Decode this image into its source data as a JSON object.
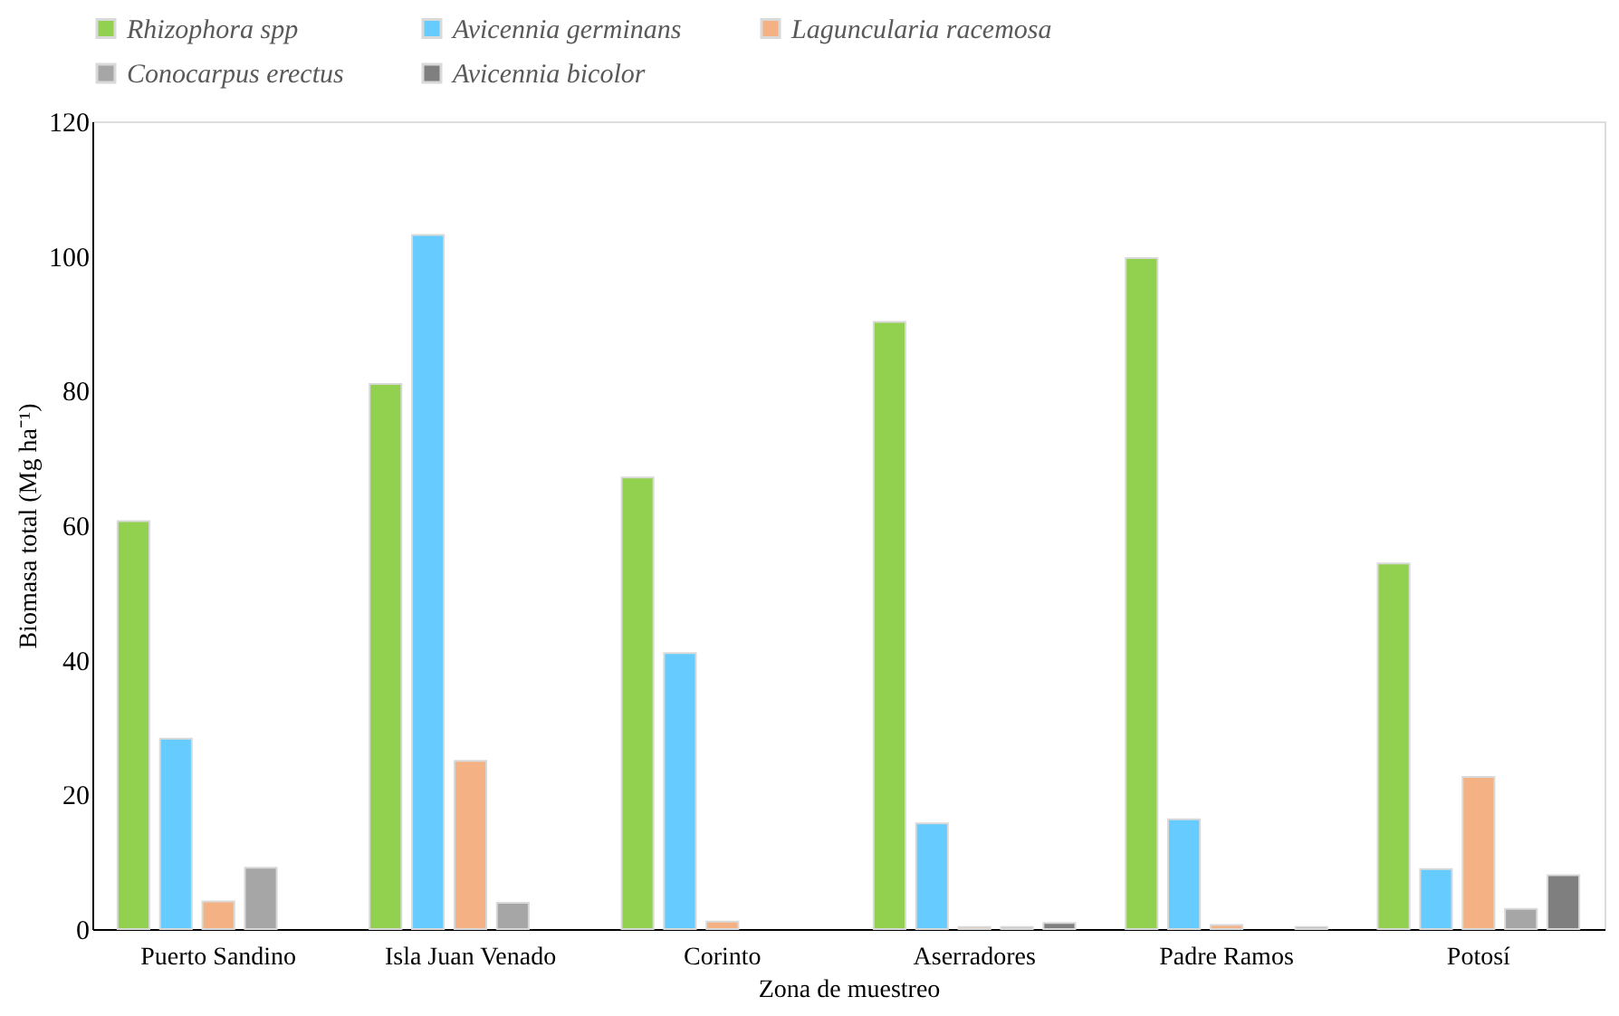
{
  "chart_data": {
    "type": "bar",
    "xlabel": "Zona de muestreo",
    "ylabel": "Biomasa total (Mg ha⁻¹)",
    "categories": [
      "Puerto Sandino",
      "Isla Juan Venado",
      "Corinto",
      "Aserradores",
      "Padre Ramos",
      "Potosí"
    ],
    "series": [
      {
        "name": "Rhizophora spp",
        "color": "#92d050",
        "values": [
          60.6,
          81.0,
          67.1,
          90.2,
          99.7,
          54.3
        ]
      },
      {
        "name": "Avicennia germinans",
        "color": "#66ccff",
        "values": [
          28.3,
          103.1,
          41.0,
          15.7,
          16.3,
          8.9
        ]
      },
      {
        "name": "Laguncularia racemosa",
        "color": "#f4b183",
        "values": [
          4.1,
          25.0,
          1.1,
          0.3,
          0.6,
          22.6
        ]
      },
      {
        "name": "Conocarpus erectus",
        "color": "#a6a6a6",
        "values": [
          9.1,
          3.9,
          null,
          0.3,
          null,
          3.0
        ]
      },
      {
        "name": "Avicennia bicolor",
        "color": "#7f7f7f",
        "values": [
          null,
          null,
          null,
          0.9,
          0.3,
          8.0
        ]
      }
    ],
    "ylim": [
      0,
      120
    ],
    "yticks": [
      0,
      20,
      40,
      60,
      80,
      100,
      120
    ],
    "grid": false,
    "legend": "top"
  }
}
